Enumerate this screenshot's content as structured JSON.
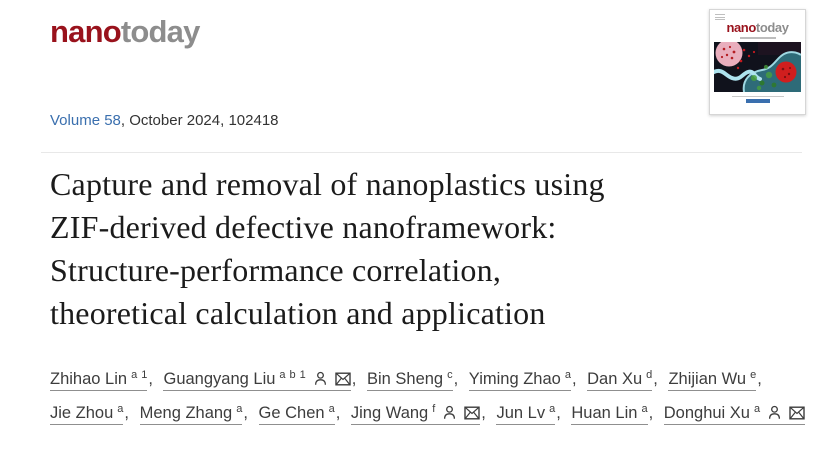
{
  "brand": {
    "logo_nano": "nano",
    "logo_today": "today"
  },
  "cover": {
    "logo_nano": "nano",
    "logo_today": "today"
  },
  "issue_line": {
    "volume_link": "Volume 58",
    "date_article": ", October 2024, 102418"
  },
  "article": {
    "title_lines": [
      "Capture and removal of nanoplastics using",
      "ZIF-derived defective nanoframework:",
      "Structure-performance correlation,",
      "theoretical calculation and application"
    ]
  },
  "author_separator": ", ",
  "authors": [
    {
      "name": "Zhihao Lin",
      "sups": [
        "a",
        "1"
      ],
      "icons": []
    },
    {
      "name": "Guangyang Liu",
      "sups": [
        "a",
        "b",
        "1"
      ],
      "icons": [
        "person",
        "mail"
      ]
    },
    {
      "name": "Bin Sheng",
      "sups": [
        "c"
      ],
      "icons": []
    },
    {
      "name": "Yiming Zhao",
      "sups": [
        "a"
      ],
      "icons": []
    },
    {
      "name": "Dan Xu",
      "sups": [
        "d"
      ],
      "icons": []
    },
    {
      "name": "Zhijian Wu",
      "sups": [
        "e"
      ],
      "icons": []
    },
    {
      "name": "Jie Zhou",
      "sups": [
        "a"
      ],
      "icons": []
    },
    {
      "name": "Meng Zhang",
      "sups": [
        "a"
      ],
      "icons": []
    },
    {
      "name": "Ge Chen",
      "sups": [
        "a"
      ],
      "icons": []
    },
    {
      "name": "Jing Wang",
      "sups": [
        "f"
      ],
      "icons": [
        "person",
        "mail"
      ]
    },
    {
      "name": "Jun Lv",
      "sups": [
        "a"
      ],
      "icons": []
    },
    {
      "name": "Huan Lin",
      "sups": [
        "a"
      ],
      "icons": []
    },
    {
      "name": "Donghui Xu",
      "sups": [
        "a"
      ],
      "icons": [
        "person",
        "mail"
      ]
    }
  ],
  "colors": {
    "brand_red": "#99121c",
    "brand_gray": "#8d8d8d",
    "link_blue": "#3a6fae",
    "title_text": "#1b1b1b",
    "author_text": "#3d3d3d",
    "divider": "#e8e8e8"
  }
}
